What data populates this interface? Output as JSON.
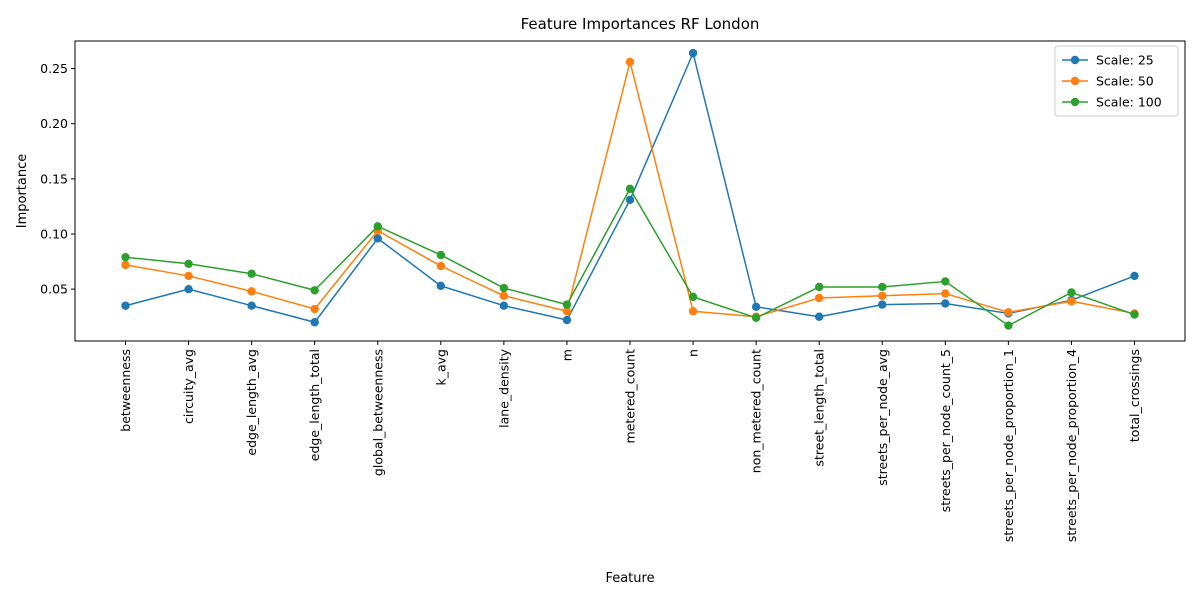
{
  "chart_data": {
    "type": "line",
    "title": "Feature Importances RF London",
    "xlabel": "Feature",
    "ylabel": "Importance",
    "categories": [
      "betweenness",
      "circuity_avg",
      "edge_length_avg",
      "edge_length_total",
      "global_betweenness",
      "k_avg",
      "lane_density",
      "m",
      "metered_count",
      "n",
      "non_metered_count",
      "street_length_total",
      "streets_per_node_avg",
      "streets_per_node_count_5",
      "streets_per_node_proportion_1",
      "streets_per_node_proportion_4",
      "total_crossings"
    ],
    "ylim": [
      0.003,
      0.275
    ],
    "yticks": [
      0.05,
      0.1,
      0.15,
      0.2,
      0.25
    ],
    "ytick_labels": [
      "0.05",
      "0.10",
      "0.15",
      "0.20",
      "0.25"
    ],
    "legend_position": "top-right",
    "grid": false,
    "series": [
      {
        "name": "Scale: 25",
        "color": "#1f77b4",
        "values": [
          0.035,
          0.05,
          0.035,
          0.02,
          0.096,
          0.053,
          0.035,
          0.022,
          0.131,
          0.264,
          0.034,
          0.025,
          0.036,
          0.037,
          0.028,
          0.04,
          0.062
        ]
      },
      {
        "name": "Scale: 50",
        "color": "#ff7f0e",
        "values": [
          0.072,
          0.062,
          0.048,
          0.032,
          0.103,
          0.071,
          0.044,
          0.03,
          0.256,
          0.03,
          0.025,
          0.042,
          0.044,
          0.046,
          0.029,
          0.039,
          0.028
        ]
      },
      {
        "name": "Scale: 100",
        "color": "#2ca02c",
        "values": [
          0.079,
          0.073,
          0.064,
          0.049,
          0.107,
          0.081,
          0.051,
          0.036,
          0.141,
          0.043,
          0.024,
          0.052,
          0.052,
          0.057,
          0.017,
          0.047,
          0.027
        ]
      }
    ]
  }
}
